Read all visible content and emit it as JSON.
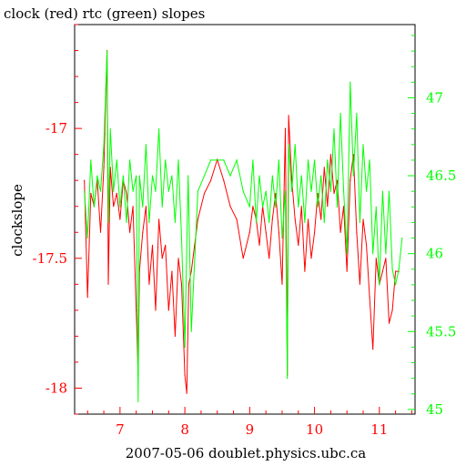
{
  "chart_data": {
    "type": "line",
    "title": "clock (red) rtc (green) slopes",
    "xlabel": "2007-05-06 doublet.physics.ubc.ca",
    "ylabel": "clockslope",
    "colors": {
      "clock": "#ff0000",
      "rtc": "#00ff00",
      "overlap": "#808000",
      "axis": "#000000"
    },
    "x_range": [
      6.3,
      11.55
    ],
    "x_ticks": [
      7,
      8,
      9,
      10,
      11
    ],
    "x_tick_labels": [
      "7",
      "8",
      "9",
      "10",
      "11"
    ],
    "y_left": {
      "range": [
        -18.1,
        -16.6
      ],
      "ticks": [
        -18,
        -17.5,
        -17
      ],
      "tick_labels": [
        "-18",
        "-17.5",
        "-17"
      ],
      "color": "#ff0000"
    },
    "y_right": {
      "range": [
        44.97,
        47.47
      ],
      "ticks": [
        45,
        45.5,
        46,
        46.5,
        47
      ],
      "tick_labels": [
        "45",
        "45.5",
        "46",
        "46.5",
        "47"
      ],
      "color": "#00ff00"
    },
    "series": [
      {
        "name": "clock",
        "axis": "left",
        "color": "#ff0000",
        "x": [
          6.45,
          6.5,
          6.55,
          6.6,
          6.65,
          6.7,
          6.75,
          6.8,
          6.82,
          6.85,
          6.9,
          6.95,
          7.0,
          7.05,
          7.1,
          7.15,
          7.2,
          7.25,
          7.28,
          7.3,
          7.35,
          7.4,
          7.45,
          7.5,
          7.55,
          7.6,
          7.65,
          7.7,
          7.75,
          7.8,
          7.85,
          7.9,
          7.95,
          8.0,
          8.03,
          8.06,
          8.1,
          8.15,
          8.2,
          8.3,
          8.4,
          8.5,
          8.6,
          8.7,
          8.8,
          8.9,
          9.0,
          9.05,
          9.1,
          9.15,
          9.2,
          9.25,
          9.3,
          9.35,
          9.4,
          9.45,
          9.5,
          9.55,
          9.58,
          9.6,
          9.65,
          9.7,
          9.75,
          9.8,
          9.85,
          9.9,
          9.95,
          10.0,
          10.05,
          10.1,
          10.15,
          10.2,
          10.25,
          10.3,
          10.35,
          10.4,
          10.45,
          10.5,
          10.55,
          10.6,
          10.65,
          10.7,
          10.75,
          10.8,
          10.85,
          10.9,
          10.95,
          11.0,
          11.05,
          11.1,
          11.15,
          11.2,
          11.25,
          11.3
        ],
        "y": [
          -17.2,
          -17.65,
          -17.25,
          -17.3,
          -17.2,
          -17.4,
          -17.15,
          -16.7,
          -17.6,
          -17.15,
          -17.3,
          -17.25,
          -17.35,
          -17.2,
          -17.25,
          -17.4,
          -17.3,
          -17.7,
          -17.95,
          -17.55,
          -17.4,
          -17.3,
          -17.6,
          -17.45,
          -17.7,
          -17.35,
          -17.5,
          -17.45,
          -17.7,
          -17.55,
          -17.8,
          -17.5,
          -17.6,
          -17.95,
          -18.02,
          -17.6,
          -17.55,
          -17.45,
          -17.35,
          -17.25,
          -17.2,
          -17.12,
          -17.2,
          -17.3,
          -17.35,
          -17.5,
          -17.4,
          -17.3,
          -17.35,
          -17.45,
          -17.3,
          -17.4,
          -17.5,
          -17.35,
          -17.25,
          -17.4,
          -17.6,
          -17.0,
          -17.95,
          -16.95,
          -17.2,
          -17.35,
          -17.45,
          -17.3,
          -17.55,
          -17.35,
          -17.5,
          -17.4,
          -17.25,
          -17.35,
          -17.15,
          -17.3,
          -17.1,
          -17.25,
          -17.2,
          -17.4,
          -17.3,
          -17.55,
          -17.2,
          -17.1,
          -17.4,
          -17.6,
          -17.35,
          -17.45,
          -17.65,
          -17.85,
          -17.5,
          -17.6,
          -17.55,
          -17.5,
          -17.75,
          -17.7,
          -17.55,
          -17.55
        ]
      },
      {
        "name": "rtc",
        "axis": "right",
        "color": "#00ff00",
        "x": [
          6.45,
          6.5,
          6.55,
          6.6,
          6.65,
          6.7,
          6.75,
          6.8,
          6.82,
          6.85,
          6.9,
          6.95,
          7.0,
          7.05,
          7.1,
          7.15,
          7.2,
          7.25,
          7.28,
          7.3,
          7.35,
          7.4,
          7.45,
          7.5,
          7.55,
          7.6,
          7.65,
          7.7,
          7.75,
          7.8,
          7.85,
          7.9,
          7.95,
          8.0,
          8.05,
          8.1,
          8.2,
          8.3,
          8.4,
          8.5,
          8.6,
          8.7,
          8.8,
          8.9,
          9.0,
          9.05,
          9.1,
          9.15,
          9.2,
          9.25,
          9.3,
          9.35,
          9.4,
          9.45,
          9.5,
          9.55,
          9.58,
          9.6,
          9.65,
          9.7,
          9.75,
          9.8,
          9.85,
          9.9,
          9.95,
          10.0,
          10.05,
          10.1,
          10.15,
          10.2,
          10.25,
          10.3,
          10.35,
          10.4,
          10.45,
          10.5,
          10.55,
          10.6,
          10.65,
          10.7,
          10.75,
          10.8,
          10.85,
          10.9,
          10.95,
          11.0,
          11.05,
          11.1,
          11.15,
          11.2,
          11.25,
          11.3,
          11.35
        ],
        "y": [
          46.4,
          46.1,
          46.6,
          46.3,
          46.5,
          46.4,
          46.7,
          47.3,
          46.2,
          46.8,
          46.4,
          46.6,
          46.3,
          46.5,
          46.2,
          46.6,
          46.4,
          46.5,
          45.05,
          46.5,
          46.3,
          46.7,
          46.2,
          46.5,
          46.4,
          46.8,
          46.3,
          46.6,
          46.4,
          46.5,
          46.2,
          46.6,
          46.1,
          45.4,
          46.5,
          45.5,
          46.4,
          46.5,
          46.6,
          46.6,
          46.6,
          46.5,
          46.6,
          46.4,
          46.3,
          46.6,
          46.2,
          46.5,
          46.3,
          46.4,
          46.2,
          46.5,
          46.3,
          46.6,
          46.1,
          46.4,
          45.2,
          46.7,
          46.4,
          46.7,
          46.3,
          46.5,
          46.2,
          46.6,
          46.4,
          46.6,
          46.3,
          46.5,
          46.2,
          46.6,
          46.4,
          46.8,
          46.3,
          46.9,
          46.4,
          46.0,
          47.1,
          46.5,
          46.9,
          46.2,
          46.7,
          46.4,
          46.6,
          46.0,
          46.3,
          45.8,
          46.4,
          46.0,
          46.4,
          45.9,
          45.8,
          45.9,
          46.1
        ]
      }
    ],
    "grid": false,
    "legend": "none"
  }
}
